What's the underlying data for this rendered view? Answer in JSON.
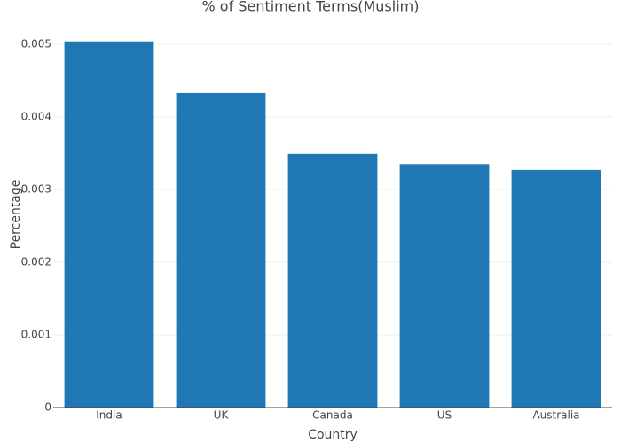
{
  "chart_data": {
    "type": "bar",
    "title": "% of Sentiment Terms(Muslim)",
    "x_label": "Country",
    "y_label": "Percentage",
    "categories": [
      "India",
      "UK",
      "Canada",
      "US",
      "Australia"
    ],
    "values": [
      0.00504,
      0.00433,
      0.00349,
      0.00335,
      0.00327
    ],
    "color": "#1f77b4",
    "ylim": [
      0,
      0.0053
    ],
    "yticks": [
      0,
      0.001,
      0.002,
      0.003,
      0.004,
      0.005
    ],
    "grid": true
  }
}
